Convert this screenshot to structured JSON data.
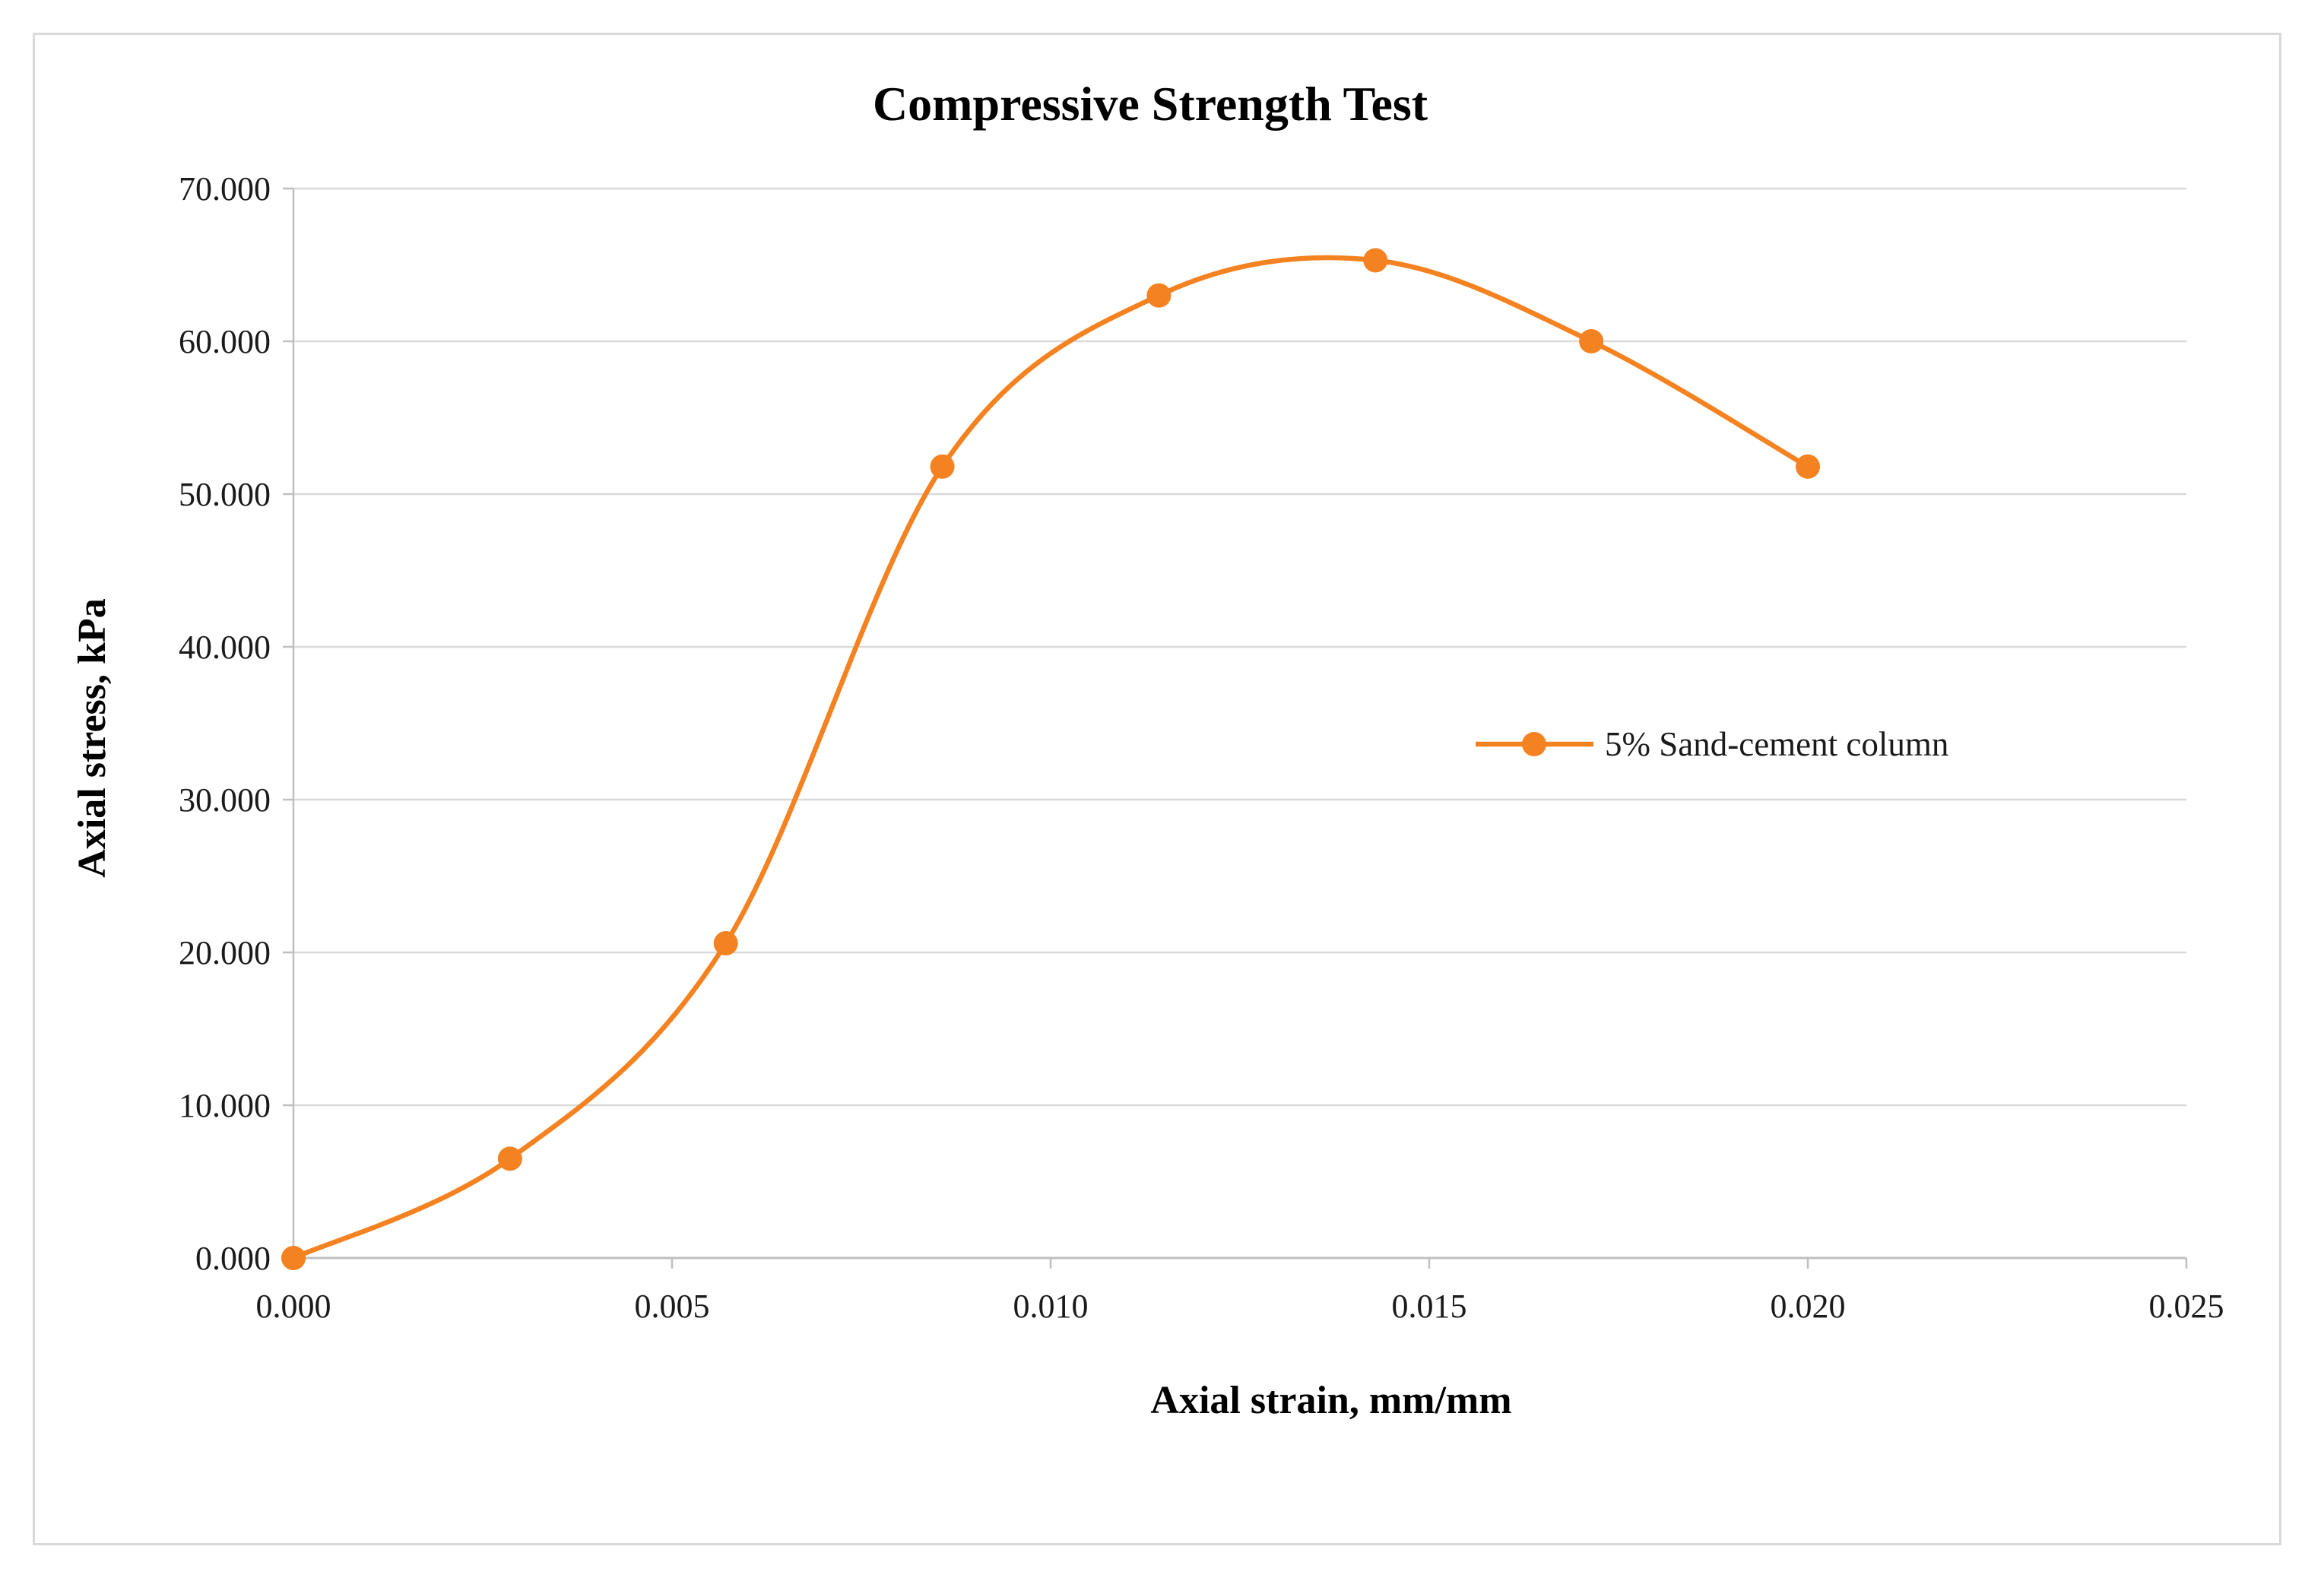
{
  "chart_data": {
    "type": "line",
    "title": "Compressive Strength Test",
    "xlabel": "Axial strain, mm/mm",
    "ylabel": "Axial stress, kPa",
    "xlim": [
      0,
      0.025
    ],
    "ylim": [
      0,
      70
    ],
    "x_ticks": [
      "0.000",
      "0.005",
      "0.010",
      "0.015",
      "0.020",
      "0.025"
    ],
    "y_ticks": [
      "0.000",
      "10.000",
      "20.000",
      "30.000",
      "40.000",
      "50.000",
      "60.000",
      "70.000"
    ],
    "grid": "horizontal",
    "smooth": true,
    "legend_position": "right",
    "series": [
      {
        "name": "5% Sand-cement column",
        "color": "#f58220",
        "marker": "circle",
        "x": [
          0.0,
          0.00286,
          0.00571,
          0.00857,
          0.01143,
          0.01429,
          0.01714,
          0.02
        ],
        "y": [
          0.0,
          6.5,
          20.6,
          51.8,
          63.0,
          65.3,
          60.0,
          51.8
        ]
      }
    ]
  }
}
